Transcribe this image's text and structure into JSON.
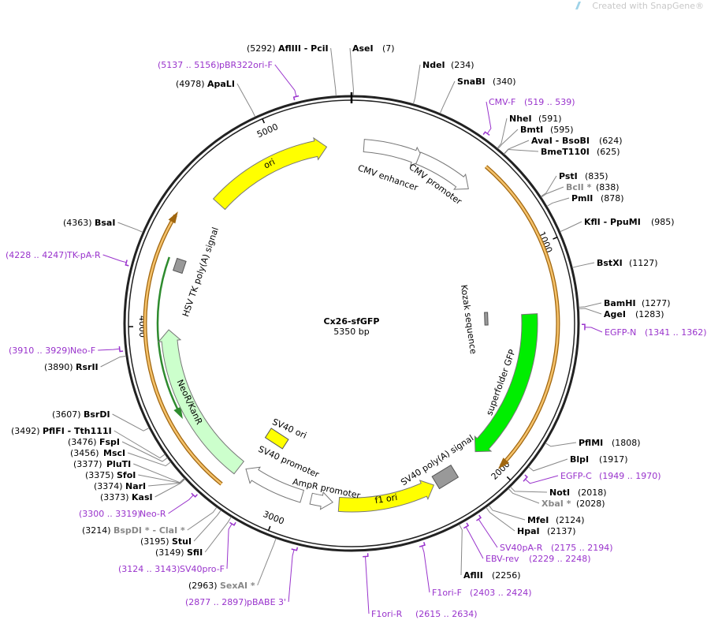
{
  "watermark": "Created with SnapGene®",
  "title": "Cx26-sfGFP",
  "size": "5350 bp",
  "ticks": [
    1000,
    2000,
    3000,
    4000,
    5000
  ],
  "features": [
    {
      "label": "CMV enhancer"
    },
    {
      "label": "CMV promoter"
    },
    {
      "label": "ori"
    },
    {
      "label": "HSV TK poly(A) signal"
    },
    {
      "label": "NeoR/KanR"
    },
    {
      "label": "SV40 ori"
    },
    {
      "label": "SV40 promoter"
    },
    {
      "label": "AmpR promoter"
    },
    {
      "label": "f1 ori"
    },
    {
      "label": "SV40 poly(A) signal"
    },
    {
      "label": "superfolder GFP"
    },
    {
      "label": "Kozak sequence"
    }
  ],
  "sites": [
    {
      "name": "AflIII  - PciI",
      "position": "(5292)",
      "kind": "enzyme",
      "color": "#000000"
    },
    {
      "name": "AseI",
      "position": "(7)",
      "kind": "enzyme",
      "color": "#000000"
    },
    {
      "name": "NdeI",
      "position": "(234)",
      "kind": "enzyme",
      "color": "#000000"
    },
    {
      "name": "SnaBI",
      "position": "(340)",
      "kind": "enzyme",
      "color": "#000000"
    },
    {
      "name": "CMV-F",
      "position": "(519 .. 539)",
      "kind": "primer",
      "color": "#9933cc"
    },
    {
      "name": "NheI",
      "position": "(591)",
      "kind": "enzyme",
      "color": "#000000"
    },
    {
      "name": "BmtI",
      "position": "(595)",
      "kind": "enzyme",
      "color": "#000000"
    },
    {
      "name": "AvaI  - BsoBI",
      "position": "(624)",
      "kind": "enzyme",
      "color": "#000000"
    },
    {
      "name": "BmeT110I",
      "position": "(625)",
      "kind": "enzyme",
      "color": "#000000"
    },
    {
      "name": "PstI",
      "position": "(835)",
      "kind": "enzyme",
      "color": "#000000"
    },
    {
      "name": "BclI *",
      "position": "(838)",
      "kind": "enzyme",
      "color": "#888888"
    },
    {
      "name": "PmlI",
      "position": "(878)",
      "kind": "enzyme",
      "color": "#000000"
    },
    {
      "name": "KflI  - PpuMI",
      "position": "(985)",
      "kind": "enzyme",
      "color": "#000000"
    },
    {
      "name": "BstXI",
      "position": "(1127)",
      "kind": "enzyme",
      "color": "#000000"
    },
    {
      "name": "BamHI",
      "position": "(1277)",
      "kind": "enzyme",
      "color": "#000000"
    },
    {
      "name": "AgeI",
      "position": "(1283)",
      "kind": "enzyme",
      "color": "#000000"
    },
    {
      "name": "EGFP-N",
      "position": "(1341 .. 1362)",
      "kind": "primer",
      "color": "#9933cc"
    },
    {
      "name": "PflMI",
      "position": "(1808)",
      "kind": "enzyme",
      "color": "#000000"
    },
    {
      "name": "BlpI",
      "position": "(1917)",
      "kind": "enzyme",
      "color": "#000000"
    },
    {
      "name": "EGFP-C",
      "position": "(1949 .. 1970)",
      "kind": "primer",
      "color": "#9933cc"
    },
    {
      "name": "NotI",
      "position": "(2018)",
      "kind": "enzyme",
      "color": "#000000"
    },
    {
      "name": "XbaI *",
      "position": "(2028)",
      "kind": "enzyme",
      "color": "#888888"
    },
    {
      "name": "MfeI",
      "position": "(2124)",
      "kind": "enzyme",
      "color": "#000000"
    },
    {
      "name": "HpaI",
      "position": "(2137)",
      "kind": "enzyme",
      "color": "#000000"
    },
    {
      "name": "SV40pA-R",
      "position": "(2175 .. 2194)",
      "kind": "primer",
      "color": "#9933cc"
    },
    {
      "name": "EBV-rev",
      "position": "(2229 .. 2248)",
      "kind": "primer",
      "color": "#9933cc"
    },
    {
      "name": "AflII",
      "position": "(2256)",
      "kind": "enzyme",
      "color": "#000000"
    },
    {
      "name": "F1ori-F",
      "position": "(2403 .. 2424)",
      "kind": "primer",
      "color": "#9933cc"
    },
    {
      "name": "F1ori-R",
      "position": "(2615 .. 2634)",
      "kind": "primer",
      "color": "#9933cc"
    },
    {
      "name": "pBR322ori-F",
      "position": "(5137 .. 5156)",
      "kind": "primer",
      "color": "#9933cc"
    },
    {
      "name": "ApaLI",
      "position": "(4978)",
      "kind": "enzyme",
      "color": "#000000"
    },
    {
      "name": "BsaI",
      "position": "(4363)",
      "kind": "enzyme",
      "color": "#000000"
    },
    {
      "name": "TK-pA-R",
      "position": "(4228 .. 4247)",
      "kind": "primer",
      "color": "#9933cc"
    },
    {
      "name": "Neo-F",
      "position": "(3910 .. 3929)",
      "kind": "primer",
      "color": "#9933cc"
    },
    {
      "name": "RsrII",
      "position": "(3890)",
      "kind": "enzyme",
      "color": "#000000"
    },
    {
      "name": "BsrDI",
      "position": "(3607)",
      "kind": "enzyme",
      "color": "#000000"
    },
    {
      "name": "PflFI  - Tth111I",
      "position": "(3492)",
      "kind": "enzyme",
      "color": "#000000"
    },
    {
      "name": "FspI",
      "position": "(3476)",
      "kind": "enzyme",
      "color": "#000000"
    },
    {
      "name": "MscI",
      "position": "(3456)",
      "kind": "enzyme",
      "color": "#000000"
    },
    {
      "name": "PluTI",
      "position": "(3377)",
      "kind": "enzyme",
      "color": "#000000"
    },
    {
      "name": "SfoI",
      "position": "(3375)",
      "kind": "enzyme",
      "color": "#000000"
    },
    {
      "name": "NarI",
      "position": "(3374)",
      "kind": "enzyme",
      "color": "#000000"
    },
    {
      "name": "KasI",
      "position": "(3373)",
      "kind": "enzyme",
      "color": "#000000"
    },
    {
      "name": "Neo-R",
      "position": "(3300 .. 3319)",
      "kind": "primer",
      "color": "#9933cc"
    },
    {
      "name": "BspDI *  - ClaI *",
      "position": "(3214)",
      "kind": "enzyme",
      "color": "#888888"
    },
    {
      "name": "StuI",
      "position": "(3195)",
      "kind": "enzyme",
      "color": "#000000"
    },
    {
      "name": "SfiI",
      "position": "(3149)",
      "kind": "enzyme",
      "color": "#000000"
    },
    {
      "name": "SV40pro-F",
      "position": "(3124 .. 3143)",
      "kind": "primer",
      "color": "#9933cc"
    },
    {
      "name": "SexAI *",
      "position": "(2963)",
      "kind": "enzyme",
      "color": "#888888"
    },
    {
      "name": "pBABE 3'",
      "position": "(2877 .. 2897)",
      "kind": "primer",
      "color": "#9933cc"
    }
  ]
}
